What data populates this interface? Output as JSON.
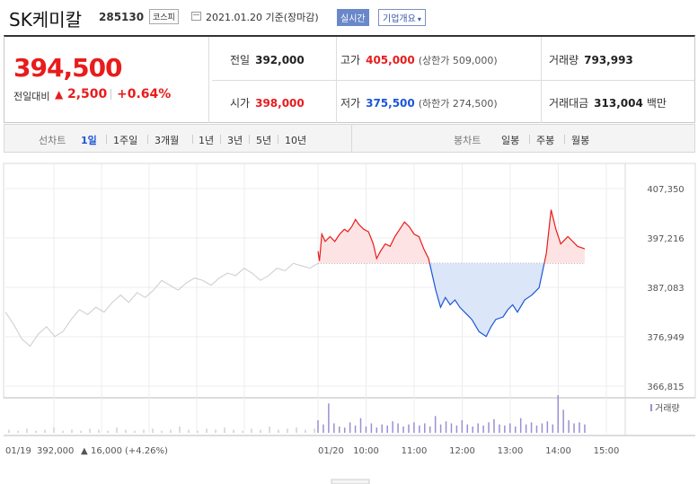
{
  "header": {
    "stock_name": "SK케미칼",
    "stock_code": "285130",
    "market": "코스피",
    "date_text": "2021.01.20  기준(장마감)",
    "realtime_label": "실시간",
    "corp_overview_label": "기업개요",
    "corp_overview_arrow": "▾"
  },
  "quote": {
    "price": "394,500",
    "change_label": "전일대비",
    "change_arrow": "▲",
    "change_amount": "2,500",
    "change_pct": "+0.64%",
    "prev_close_label": "전일",
    "prev_close": "392,000",
    "open_label": "시가",
    "open": "398,000",
    "high_label": "고가",
    "high": "405,000",
    "upper_limit": "(상한가 509,000)",
    "low_label": "저가",
    "low": "375,500",
    "lower_limit": "(하한가 274,500)",
    "volume_label": "거래량",
    "volume": "793,993",
    "amount_label": "거래대금",
    "amount": "313,004",
    "amount_unit": "백만"
  },
  "tabs": {
    "line_label": "선차트",
    "periods": [
      "1일",
      "1주일",
      "3개월",
      "1년",
      "3년",
      "5년",
      "10년"
    ],
    "selected": "1일",
    "candle_label": "봉차트",
    "candles": [
      "일봉",
      "주봉",
      "월봉"
    ]
  },
  "colors": {
    "up": "#e81c1c",
    "down": "#1c56d6",
    "up_fill": "#fde3e3",
    "down_fill": "#dbe6f8",
    "prev_line": "#cccccc",
    "volume": "#9a8fd0"
  },
  "chart_data": {
    "type": "line",
    "y_ticks": [
      "407,350",
      "397,216",
      "387,083",
      "376,949",
      "366,815"
    ],
    "ylim": [
      366815,
      407350
    ],
    "baseline": 392000,
    "volume_label": "거래량",
    "x_ticks": [
      "01/20",
      "10:00",
      "11:00",
      "12:00",
      "13:00",
      "14:00",
      "15:00"
    ],
    "prev_day": {
      "date": "01/19",
      "close": "392,000",
      "change_arrow": "▲",
      "change": "16,000",
      "change_pct": "(+4.26%)",
      "values": [
        382000,
        379500,
        376500,
        375000,
        377500,
        379000,
        377000,
        378000,
        380500,
        382500,
        381500,
        383000,
        382000,
        384000,
        385500,
        384000,
        386000,
        385000,
        386500,
        388500,
        387500,
        386500,
        388000,
        389000,
        388500,
        387500,
        389000,
        390000,
        389500,
        391000,
        390000,
        388500,
        389500,
        391000,
        390500,
        392000,
        391500,
        391000,
        392000
      ]
    },
    "today": {
      "values": [
        394500,
        392500,
        398000,
        396500,
        397500,
        396500,
        398000,
        399000,
        398500,
        399500,
        401000,
        400000,
        399000,
        398500,
        396000,
        393000,
        394500,
        396000,
        395500,
        397500,
        399000,
        400500,
        399500,
        398000,
        397500,
        395000,
        393000,
        386500,
        383000,
        385000,
        383500,
        384500,
        383000,
        381500,
        380500,
        378000,
        377000,
        379000,
        380500,
        381000,
        382500,
        383500,
        382000,
        384500,
        385500,
        387000,
        394000,
        403000,
        399000,
        396000,
        397500,
        395500,
        395000
      ],
      "x_times": [
        9.0,
        9.03,
        9.08,
        9.15,
        9.25,
        9.35,
        9.45,
        9.55,
        9.62,
        9.7,
        9.78,
        9.85,
        9.95,
        10.05,
        10.15,
        10.22,
        10.3,
        10.4,
        10.5,
        10.6,
        10.7,
        10.8,
        10.9,
        11.0,
        11.1,
        11.2,
        11.3,
        11.45,
        11.55,
        11.65,
        11.75,
        11.85,
        11.95,
        12.1,
        12.2,
        12.35,
        12.5,
        12.6,
        12.7,
        12.85,
        12.95,
        13.05,
        13.15,
        13.3,
        13.45,
        13.6,
        13.75,
        13.85,
        13.95,
        14.05,
        14.2,
        14.4,
        14.55
      ]
    },
    "volume_prev": [
      3,
      2,
      4,
      2,
      3,
      5,
      2,
      3,
      2,
      4,
      3,
      2,
      5,
      3,
      2,
      3,
      4,
      2,
      3,
      6,
      3,
      2,
      4,
      3,
      5,
      3,
      2,
      4,
      3,
      6,
      3,
      4,
      5,
      3,
      4
    ],
    "volume_today": [
      12,
      8,
      28,
      9,
      6,
      5,
      10,
      7,
      14,
      6,
      9,
      5,
      8,
      7,
      11,
      9,
      6,
      8,
      10,
      7,
      9,
      6,
      16,
      8,
      11,
      9,
      7,
      12,
      8,
      6,
      9,
      7,
      10,
      13,
      8,
      7,
      9,
      6,
      14,
      8,
      10,
      7,
      9,
      11,
      8,
      36,
      22,
      12,
      9,
      10,
      8
    ]
  }
}
